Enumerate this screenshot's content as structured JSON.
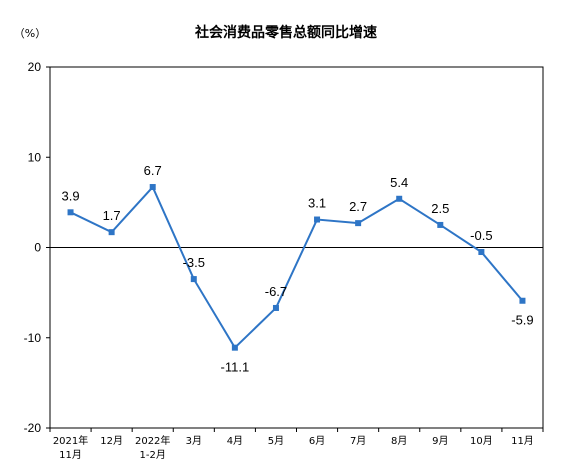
{
  "chart_data": {
    "type": "line",
    "title": "社会消费品零售总额同比增速",
    "ylabel": "（%）",
    "ylim": [
      -20,
      20
    ],
    "yticks": [
      20,
      10,
      0,
      -10,
      -20
    ],
    "categories": [
      [
        "2021年",
        "11月"
      ],
      [
        "12月"
      ],
      [
        "2022年",
        "1-2月"
      ],
      [
        "3月"
      ],
      [
        "4月"
      ],
      [
        "5月"
      ],
      [
        "6月"
      ],
      [
        "7月"
      ],
      [
        "8月"
      ],
      [
        "9月"
      ],
      [
        "10月"
      ],
      [
        "11月"
      ]
    ],
    "values": [
      3.9,
      1.7,
      6.7,
      -3.5,
      -11.1,
      -6.7,
      3.1,
      2.7,
      5.4,
      2.5,
      -0.5,
      -5.9
    ],
    "data_labels": [
      "3.9",
      "1.7",
      "6.7",
      "-3.5",
      "-11.1",
      "-6.7",
      "3.1",
      "2.7",
      "5.4",
      "2.5",
      "-0.5",
      "-5.9"
    ],
    "line_color": "#2e75c6",
    "grid": false,
    "legend": "none"
  }
}
